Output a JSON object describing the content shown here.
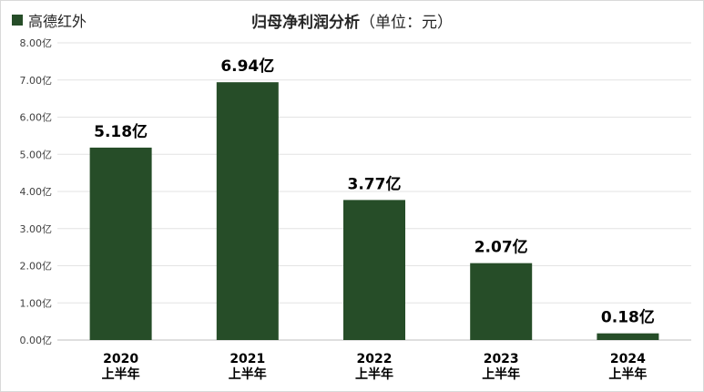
{
  "legend": {
    "label": "高德红外",
    "color": "#264d28"
  },
  "title": {
    "main": "归母净利润分析",
    "unit": "（单位：元）"
  },
  "chart_data": {
    "type": "bar",
    "categories": [
      [
        "2020",
        "上半年"
      ],
      [
        "2021",
        "上半年"
      ],
      [
        "2022",
        "上半年"
      ],
      [
        "2023",
        "上半年"
      ],
      [
        "2024",
        "上半年"
      ]
    ],
    "series": [
      {
        "name": "高德红外",
        "values": [
          5.18,
          6.94,
          3.77,
          2.07,
          0.18
        ],
        "value_labels": [
          "5.18亿",
          "6.94亿",
          "3.77亿",
          "2.07亿",
          "0.18亿"
        ]
      }
    ],
    "y_ticks": [
      "0.00亿",
      "1.00亿",
      "2.00亿",
      "3.00亿",
      "4.00亿",
      "5.00亿",
      "6.00亿",
      "7.00亿",
      "8.00亿"
    ],
    "ylim": [
      0,
      8
    ],
    "grid": true,
    "legend_position": "top-left",
    "bar_color": "#264d28"
  }
}
